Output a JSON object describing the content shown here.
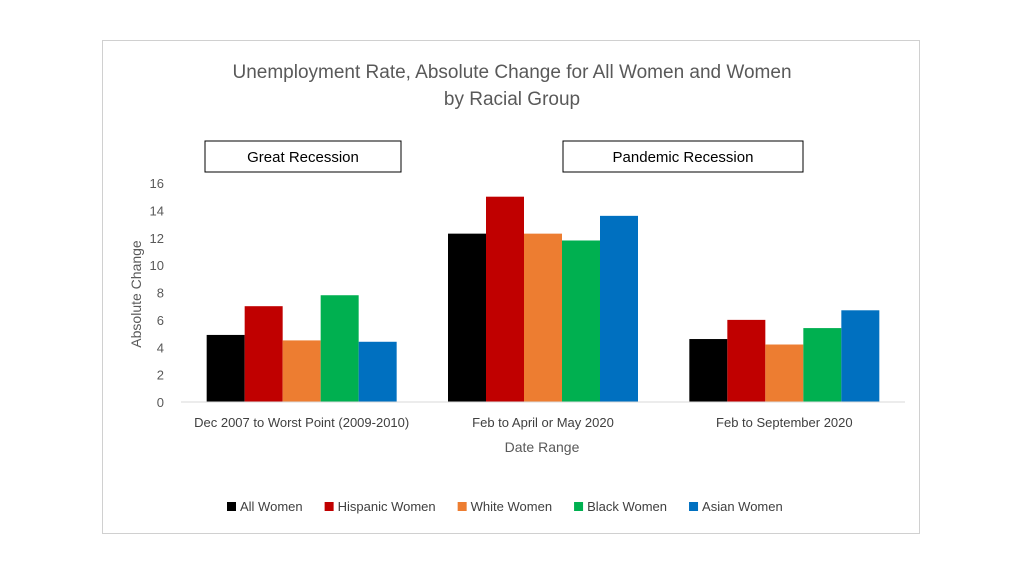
{
  "chart_data": {
    "type": "bar",
    "title_lines": [
      "Unemployment Rate, Absolute Change for All Women and Women",
      "by Racial Group"
    ],
    "xlabel": "Date Range",
    "ylabel": "Absolute Change",
    "ylim": [
      0,
      16
    ],
    "yticks": [
      0,
      2,
      4,
      6,
      8,
      10,
      12,
      14,
      16
    ],
    "grid": false,
    "legend_position": "bottom",
    "categories": [
      "Dec 2007 to Worst Point (2009-2010)",
      "Feb to April or May 2020",
      "Feb to September 2020"
    ],
    "series": [
      {
        "name": "All Women",
        "color": "#000000",
        "values": [
          4.9,
          12.3,
          4.6
        ]
      },
      {
        "name": "Hispanic Women",
        "color": "#c00000",
        "values": [
          7.0,
          15.0,
          6.0
        ]
      },
      {
        "name": "White Women",
        "color": "#ed7d31",
        "values": [
          4.5,
          12.3,
          4.2
        ]
      },
      {
        "name": "Black Women",
        "color": "#00b050",
        "values": [
          7.8,
          11.8,
          5.4
        ]
      },
      {
        "name": "Asian Women",
        "color": "#0070c0",
        "values": [
          4.4,
          13.6,
          6.7
        ]
      }
    ],
    "annotations": [
      "Great Recession",
      "Pandemic Recession"
    ]
  }
}
